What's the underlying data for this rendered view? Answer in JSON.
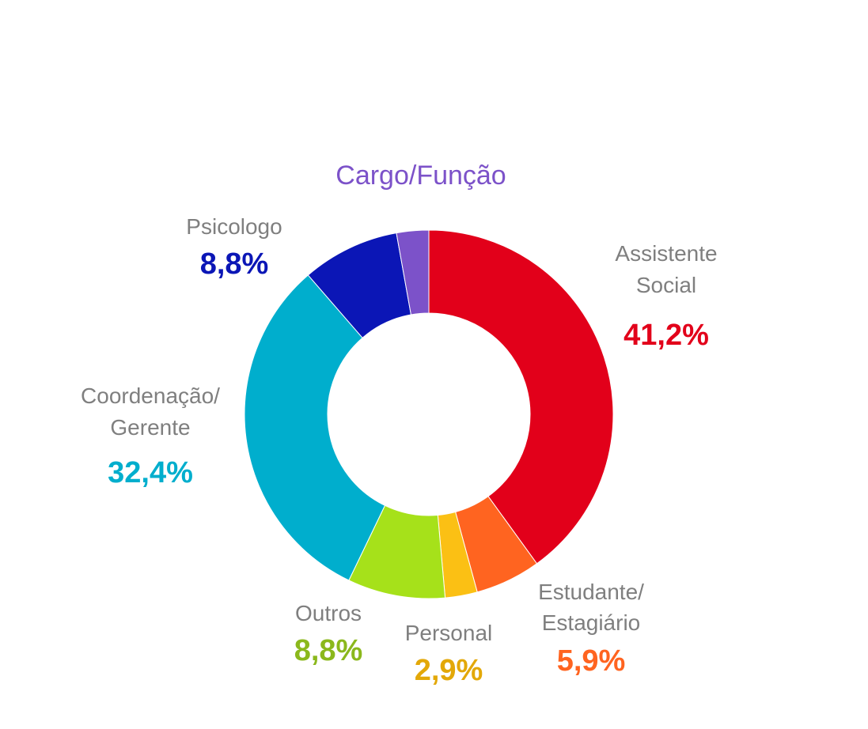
{
  "chart_data": {
    "type": "pie",
    "title": "Cargo/Função",
    "slices": [
      {
        "label_lines": [
          "Assistente",
          "Social"
        ],
        "value_label": "41,2%",
        "value": 41.2,
        "color": "#e2001a"
      },
      {
        "label_lines": [
          "Estudante/",
          "Estagiário"
        ],
        "value_label": "5,9%",
        "value": 5.9,
        "color": "#ff6420"
      },
      {
        "label_lines": [
          "Personal"
        ],
        "value_label": "2,9%",
        "value": 2.9,
        "color": "#fbc014"
      },
      {
        "label_lines": [
          "Outros"
        ],
        "value_label": "8,8%",
        "value": 8.8,
        "color": "#a6e11a"
      },
      {
        "label_lines": [
          "Coordenação/",
          "Gerente"
        ],
        "value_label": "32,4%",
        "value": 32.4,
        "color": "#00aecd"
      },
      {
        "label_lines": [
          "Psicologo"
        ],
        "value_label": "8,8%",
        "value": 8.8,
        "color": "#0b16b6"
      },
      {
        "label_lines": [],
        "value_label": "",
        "value": 2.9,
        "color": "#7c52c9"
      }
    ],
    "value_label_colors": [
      "#e2001a",
      "#ff6420",
      "#e3a808",
      "#8bb81c",
      "#00aecd",
      "#0b16b6",
      "#7c52c9"
    ],
    "title_color": "#7c52c9",
    "donut": true,
    "legend": "none"
  }
}
